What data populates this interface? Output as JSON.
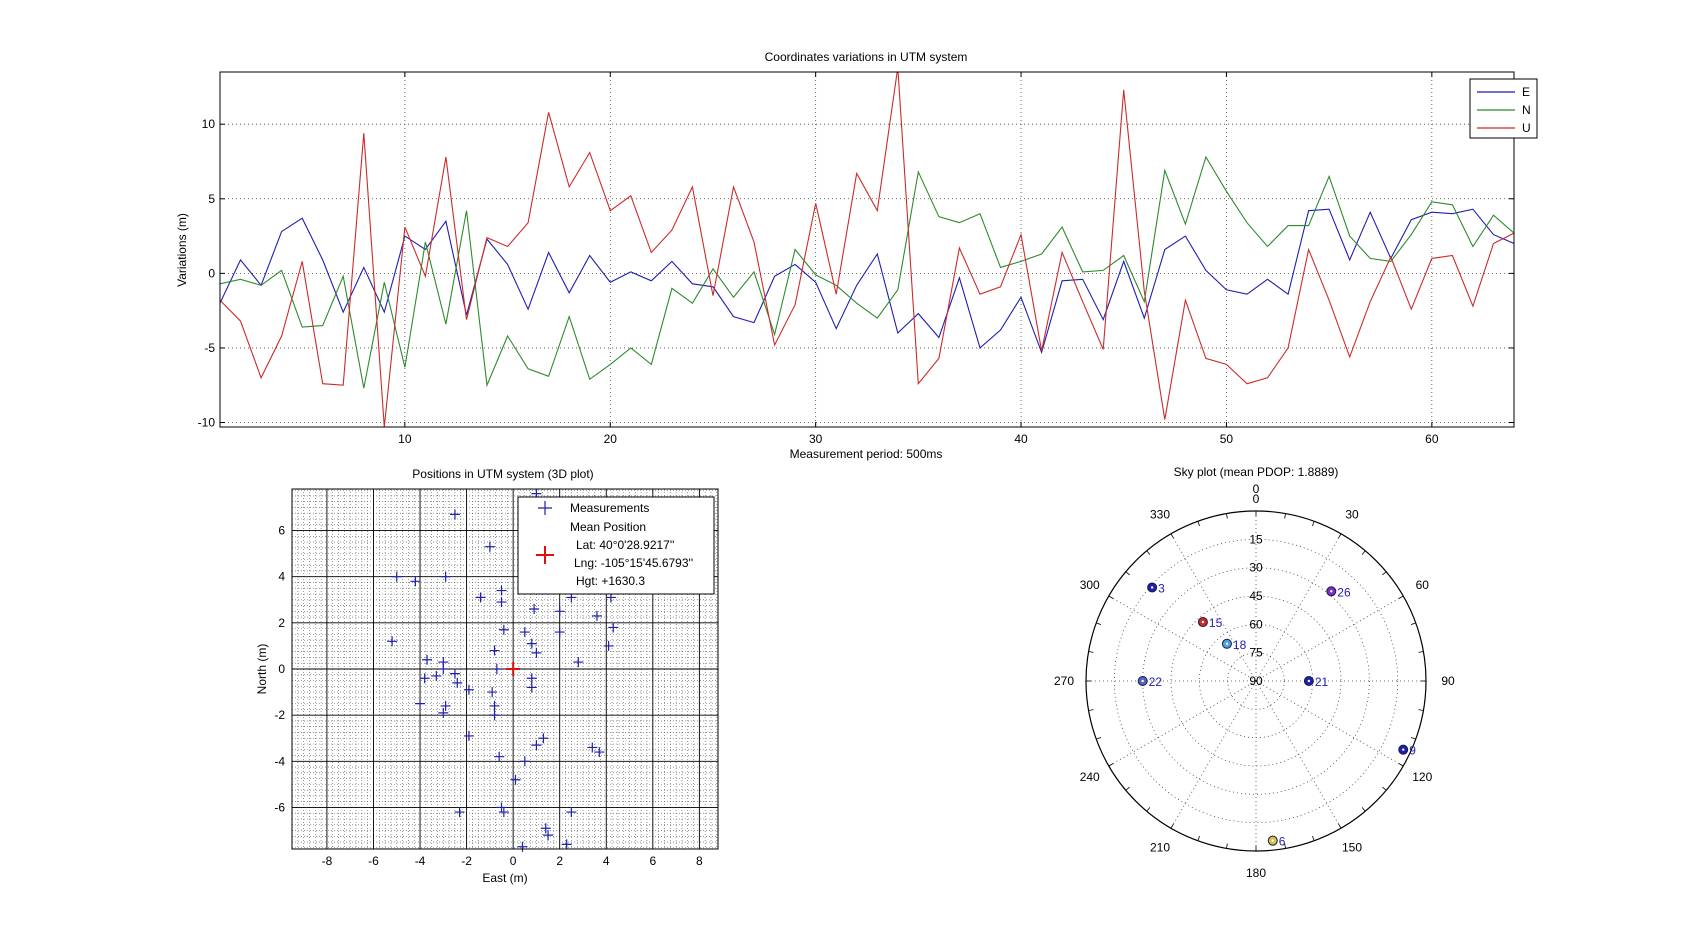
{
  "colors": {
    "E": "#1f1fb0",
    "N": "#2e8b2e",
    "U": "#cc2b2b",
    "grid": "#333333"
  },
  "chart_data": [
    {
      "type": "line",
      "title": "Coordinates variations in UTM system",
      "xlabel": "Measurement period: 500ms",
      "ylabel": "Variations (m)",
      "xlim": [
        1,
        64
      ],
      "ylim": [
        -10.3,
        13.5
      ],
      "xticks": [
        10,
        20,
        30,
        40,
        50,
        60
      ],
      "yticks": [
        -10,
        -5,
        0,
        5,
        10
      ],
      "grid": true,
      "legend_position": "top-right",
      "series": [
        {
          "name": "E",
          "color": "#1f1fb0",
          "values": [
            -2.0,
            0.9,
            -0.8,
            2.8,
            3.7,
            0.9,
            -2.6,
            0.4,
            -2.6,
            2.5,
            1.6,
            3.5,
            -2.8,
            2.3,
            0.6,
            -2.4,
            1.4,
            -1.3,
            1.2,
            -0.6,
            0.1,
            -0.5,
            0.8,
            -0.7,
            -0.9,
            -2.9,
            -3.3,
            -0.2,
            0.6,
            -0.6,
            -3.7,
            -0.8,
            1.3,
            -4.0,
            -2.7,
            -4.3,
            -0.3,
            -5.0,
            -3.8,
            -1.6,
            -5.3,
            -0.5,
            -0.4,
            -3.1,
            0.8,
            -3.0,
            1.6,
            2.5,
            0.2,
            -1.1,
            -1.4,
            -0.4,
            -1.4,
            4.2,
            4.3,
            0.9,
            4.1,
            1.0,
            3.6,
            4.1,
            4.0,
            4.3,
            2.6,
            2.0
          ]
        },
        {
          "name": "N",
          "color": "#2e8b2e",
          "values": [
            -0.7,
            -0.4,
            -0.8,
            0.2,
            -3.6,
            -3.5,
            -0.2,
            -7.7,
            -0.6,
            -6.3,
            2.1,
            -3.4,
            4.2,
            -7.5,
            -4.2,
            -6.4,
            -6.9,
            -2.9,
            -7.1,
            -6.1,
            -5.0,
            -6.1,
            -1.0,
            -2.0,
            0.3,
            -1.6,
            0.1,
            -4.1,
            1.6,
            -0.1,
            -0.8,
            -2.0,
            -3.0,
            -1.1,
            6.8,
            3.8,
            3.4,
            4.0,
            0.4,
            0.8,
            1.3,
            3.1,
            0.1,
            0.2,
            1.2,
            -1.9,
            6.9,
            3.3,
            7.8,
            5.5,
            3.4,
            1.8,
            3.2,
            3.2,
            6.5,
            2.5,
            1.0,
            0.8,
            2.6,
            4.8,
            4.6,
            1.8,
            3.9,
            2.7
          ]
        },
        {
          "name": "U",
          "color": "#cc2b2b",
          "values": [
            -1.8,
            -3.2,
            -7.0,
            -4.2,
            0.8,
            -7.4,
            -7.5,
            9.4,
            -10.3,
            3.1,
            -0.2,
            7.8,
            -3.1,
            2.4,
            1.8,
            3.4,
            10.8,
            5.8,
            8.1,
            4.2,
            5.2,
            1.4,
            2.9,
            5.8,
            -1.5,
            5.8,
            2.1,
            -4.8,
            -2.1,
            4.7,
            -1.4,
            6.7,
            4.2,
            13.8,
            -7.4,
            -5.7,
            1.7,
            -1.4,
            -0.9,
            2.6,
            -5.2,
            1.4,
            -1.9,
            -5.1,
            12.3,
            -1.2,
            -9.8,
            -1.8,
            -5.7,
            -6.1,
            -7.4,
            -7.0,
            -5.0,
            1.6,
            -1.8,
            -5.6,
            -1.9,
            1.1,
            -2.4,
            1.0,
            1.2,
            -2.2,
            2.0,
            2.7
          ]
        }
      ]
    },
    {
      "type": "scatter",
      "title": "Positions in UTM system (3D plot)",
      "xlabel": "East (m)",
      "ylabel": "North (m)",
      "xlim": [
        -9.5,
        8.8
      ],
      "ylim": [
        -7.8,
        7.8
      ],
      "xticks": [
        -8,
        -6,
        -4,
        -2,
        0,
        2,
        4,
        6,
        8
      ],
      "yticks": [
        -6,
        -4,
        -2,
        0,
        2,
        4,
        6
      ],
      "grid": true,
      "legend_position": "top-right",
      "legend": {
        "measurements_label": "Measurements",
        "mean_label": "Mean Position",
        "lat": "Lat:  40°0'28.9217''",
        "lng": "Lng: -105°15'45.6793''",
        "hgt": "Hgt:  +1630.3"
      },
      "mean_position": [
        0.0,
        0.0
      ],
      "points": [
        [
          -2.5,
          6.7
        ],
        [
          -1.0,
          5.3
        ],
        [
          -5.0,
          4.0
        ],
        [
          -4.2,
          3.8
        ],
        [
          -2.9,
          4.0
        ],
        [
          -1.4,
          3.1
        ],
        [
          -0.5,
          3.4
        ],
        [
          -0.5,
          2.9
        ],
        [
          0.9,
          2.6
        ],
        [
          -0.4,
          1.7
        ],
        [
          0.5,
          1.6
        ],
        [
          0.8,
          1.1
        ],
        [
          1.0,
          0.7
        ],
        [
          2.0,
          2.5
        ],
        [
          2.0,
          1.6
        ],
        [
          2.5,
          3.1
        ],
        [
          3.6,
          2.3
        ],
        [
          4.3,
          1.8
        ],
        [
          4.1,
          1.0
        ],
        [
          4.2,
          3.1
        ],
        [
          2.8,
          0.3
        ],
        [
          -5.2,
          1.2
        ],
        [
          -3.7,
          0.4
        ],
        [
          -3.0,
          0.3
        ],
        [
          -3.0,
          0.0
        ],
        [
          -2.5,
          -0.2
        ],
        [
          -2.4,
          -0.6
        ],
        [
          -3.3,
          -0.3
        ],
        [
          -3.8,
          -0.4
        ],
        [
          -1.9,
          -0.9
        ],
        [
          -0.8,
          0.8
        ],
        [
          -0.7,
          0.0
        ],
        [
          -0.9,
          -1.0
        ],
        [
          -0.8,
          -1.6
        ],
        [
          -0.8,
          -2.0
        ],
        [
          0.8,
          -0.4
        ],
        [
          0.8,
          -0.8
        ],
        [
          -4.0,
          -1.5
        ],
        [
          -2.9,
          -1.6
        ],
        [
          -3.0,
          -1.9
        ],
        [
          -1.9,
          -2.9
        ],
        [
          1.3,
          -3.0
        ],
        [
          1.0,
          -3.3
        ],
        [
          3.4,
          -3.4
        ],
        [
          3.7,
          -3.6
        ],
        [
          -0.6,
          -3.8
        ],
        [
          0.5,
          -4.0
        ],
        [
          0.1,
          -4.8
        ],
        [
          -2.3,
          -6.2
        ],
        [
          -0.5,
          -6.0
        ],
        [
          -0.4,
          -6.2
        ],
        [
          1.4,
          -6.9
        ],
        [
          1.5,
          -7.2
        ],
        [
          2.5,
          -6.2
        ],
        [
          2.3,
          -7.6
        ],
        [
          0.4,
          -7.7
        ],
        [
          1.0,
          7.6
        ],
        [
          -1.4,
          3.1
        ]
      ]
    },
    {
      "type": "scatter",
      "title": "Sky plot (mean PDOP: 1.8889)",
      "projection": "polar",
      "azimuth_labels": [
        "0",
        "30",
        "60",
        "90",
        "120",
        "150",
        "180",
        "210",
        "240",
        "270",
        "300",
        "330"
      ],
      "elevation_labels": [
        "0",
        "15",
        "30",
        "45",
        "60",
        "75",
        "90"
      ],
      "satellites": [
        {
          "prn": "3",
          "azimuth": 312,
          "elevation": 16,
          "color": "#1f1fb0"
        },
        {
          "prn": "26",
          "azimuth": 40,
          "elevation": 28,
          "color": "#7a2fc8"
        },
        {
          "prn": "15",
          "azimuth": 318,
          "elevation": 48,
          "color": "#cc2b2b"
        },
        {
          "prn": "18",
          "azimuth": 322,
          "elevation": 65,
          "color": "#4fa3e0"
        },
        {
          "prn": "21",
          "azimuth": 90,
          "elevation": 62,
          "color": "#1f1fb0"
        },
        {
          "prn": "22",
          "azimuth": 270,
          "elevation": 30,
          "color": "#4f66c8"
        },
        {
          "prn": "9",
          "azimuth": 115,
          "elevation": 4,
          "color": "#1f1fb0"
        },
        {
          "prn": "6",
          "azimuth": 174,
          "elevation": 5,
          "color": "#d4c34a"
        }
      ]
    }
  ]
}
